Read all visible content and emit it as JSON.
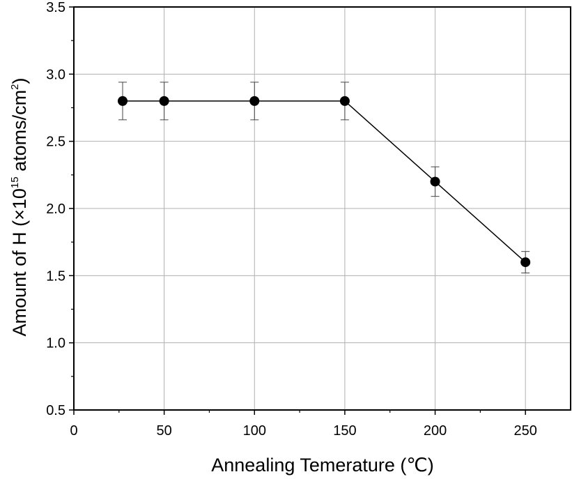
{
  "chart_data": {
    "type": "line",
    "title": "",
    "xlabel": "Annealing Temerature (℃)",
    "ylabel": {
      "prefix": "Amount of H (×10",
      "exp": "15",
      "middle": " atoms/cm",
      "exp2": "2",
      "suffix": ")"
    },
    "xlim": [
      0,
      275
    ],
    "ylim": [
      0.5,
      3.5
    ],
    "xticks": [
      0,
      50,
      100,
      150,
      200,
      250
    ],
    "xtick_labels": [
      "0",
      "50",
      "100",
      "150",
      "200",
      "250"
    ],
    "yticks": [
      0.5,
      1.0,
      1.5,
      2.0,
      2.5,
      3.0,
      3.5
    ],
    "ytick_labels": [
      "0.5",
      "1.0",
      "1.5",
      "2.0",
      "2.5",
      "3.0",
      "3.5"
    ],
    "grid": true,
    "series": [
      {
        "name": "Amount of H",
        "x": [
          27,
          50,
          100,
          150,
          200,
          250
        ],
        "y": [
          2.8,
          2.8,
          2.8,
          2.8,
          2.2,
          1.6
        ],
        "err_low": [
          2.66,
          2.66,
          2.66,
          2.66,
          2.09,
          1.52
        ],
        "err_high": [
          2.94,
          2.94,
          2.94,
          2.94,
          2.31,
          1.68
        ]
      }
    ],
    "colors": {
      "line": "#000000",
      "marker": "#000000",
      "grid": "#b0b0b0",
      "axis": "#000000"
    }
  }
}
